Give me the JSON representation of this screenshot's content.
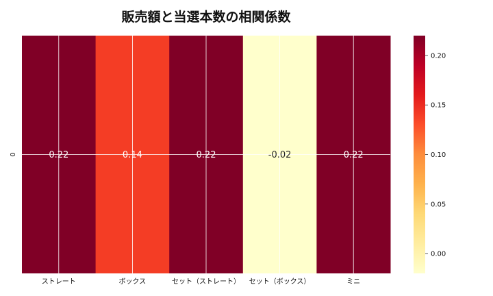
{
  "chart_data": {
    "type": "heatmap",
    "title": "販売額と当選本数の相関係数",
    "rows": [
      "0"
    ],
    "categories": [
      "ストレート",
      "ボックス",
      "セット（ストレート）",
      "セット（ボックス）",
      "ミニ"
    ],
    "values": [
      [
        0.22,
        0.14,
        0.22,
        -0.02,
        0.22
      ]
    ],
    "value_labels": [
      "0.22",
      "0.14",
      "0.22",
      "-0.02",
      "0.22"
    ],
    "colormap": "YlOrRd",
    "vmin": -0.02,
    "vmax": 0.22,
    "colorbar_ticks": [
      "0.00",
      "0.05",
      "0.10",
      "0.15",
      "0.20"
    ],
    "grid": true
  }
}
